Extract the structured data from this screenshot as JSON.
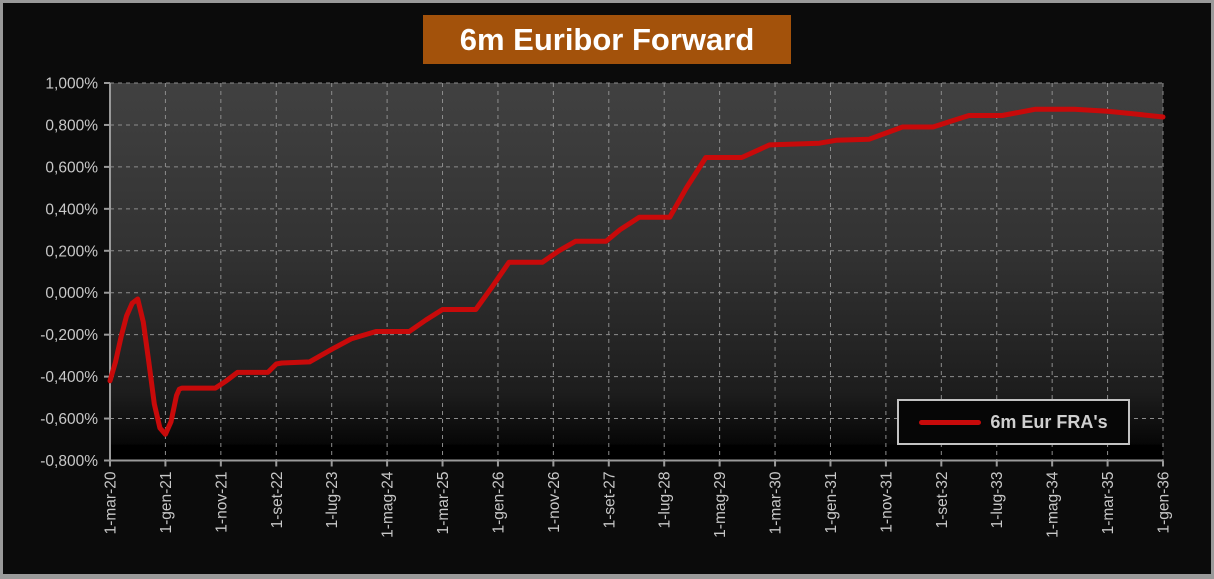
{
  "title": "6m Euribor Forward",
  "legend": {
    "label": "6m Eur FRA's"
  },
  "colors": {
    "line": "#c80a0a",
    "title_bg": "#a3520b",
    "title_text": "#ffffff",
    "axis_text": "#c8c8c8",
    "gridline": "#8d8d8d",
    "axis_line": "#9a9a9a",
    "frame_border": "#9a9a9a",
    "chart_background": "#0b0b0b"
  },
  "chart_data": {
    "type": "line",
    "title": "6m Euribor Forward",
    "x_unit": "months since 1-mar-20",
    "xlim": [
      0,
      190
    ],
    "ylim": [
      -0.8,
      1.0
    ],
    "grid": "dashed",
    "legend_position": "inside-bottom-right",
    "x_ticks": {
      "months": [
        0,
        10,
        20,
        30,
        40,
        50,
        60,
        70,
        80,
        90,
        100,
        110,
        120,
        130,
        140,
        150,
        160,
        170,
        180,
        190
      ],
      "labels": [
        "1-mar-20",
        "1-gen-21",
        "1-nov-21",
        "1-set-22",
        "1-lug-23",
        "1-mag-24",
        "1-mar-25",
        "1-gen-26",
        "1-nov-26",
        "1-set-27",
        "1-lug-28",
        "1-mag-29",
        "1-mar-30",
        "1-gen-31",
        "1-nov-31",
        "1-set-32",
        "1-lug-33",
        "1-mag-34",
        "1-mar-35",
        "1-gen-36"
      ]
    },
    "y_ticks": {
      "values": [
        1.0,
        0.8,
        0.6,
        0.4,
        0.2,
        0.0,
        -0.2,
        -0.4,
        -0.6,
        -0.8
      ],
      "labels": [
        "1,000%",
        "0,800%",
        "0,600%",
        "0,400%",
        "0,200%",
        "0,000%",
        "-0,200%",
        "-0,400%",
        "-0,600%",
        "-0,800%"
      ]
    },
    "series": [
      {
        "name": "6m Eur FRA's",
        "unit": "percent",
        "points": [
          [
            0,
            -0.42
          ],
          [
            1,
            -0.33
          ],
          [
            2,
            -0.21
          ],
          [
            3,
            -0.11
          ],
          [
            4,
            -0.05
          ],
          [
            5,
            -0.03
          ],
          [
            6,
            -0.14
          ],
          [
            7,
            -0.33
          ],
          [
            8,
            -0.53
          ],
          [
            9,
            -0.645
          ],
          [
            10,
            -0.675
          ],
          [
            11,
            -0.615
          ],
          [
            12,
            -0.49
          ],
          [
            12.5,
            -0.46
          ],
          [
            13,
            -0.455
          ],
          [
            19,
            -0.455
          ],
          [
            21,
            -0.42
          ],
          [
            23,
            -0.38
          ],
          [
            28.5,
            -0.38
          ],
          [
            30,
            -0.34
          ],
          [
            31,
            -0.335
          ],
          [
            36,
            -0.33
          ],
          [
            40,
            -0.27
          ],
          [
            43.5,
            -0.22
          ],
          [
            48,
            -0.185
          ],
          [
            54,
            -0.185
          ],
          [
            57,
            -0.13
          ],
          [
            60,
            -0.08
          ],
          [
            66,
            -0.08
          ],
          [
            69,
            0.03
          ],
          [
            72,
            0.145
          ],
          [
            78,
            0.145
          ],
          [
            81,
            0.2
          ],
          [
            84,
            0.245
          ],
          [
            89.5,
            0.245
          ],
          [
            92,
            0.3
          ],
          [
            95.5,
            0.36
          ],
          [
            101,
            0.36
          ],
          [
            104,
            0.5
          ],
          [
            107.5,
            0.645
          ],
          [
            114,
            0.645
          ],
          [
            119,
            0.705
          ],
          [
            128,
            0.713
          ],
          [
            131,
            0.727
          ],
          [
            137,
            0.732
          ],
          [
            143,
            0.79
          ],
          [
            148.5,
            0.79
          ],
          [
            152,
            0.82
          ],
          [
            155,
            0.845
          ],
          [
            161,
            0.845
          ],
          [
            167,
            0.875
          ],
          [
            174,
            0.875
          ],
          [
            180,
            0.865
          ],
          [
            185,
            0.852
          ],
          [
            190,
            0.838
          ]
        ]
      }
    ]
  }
}
